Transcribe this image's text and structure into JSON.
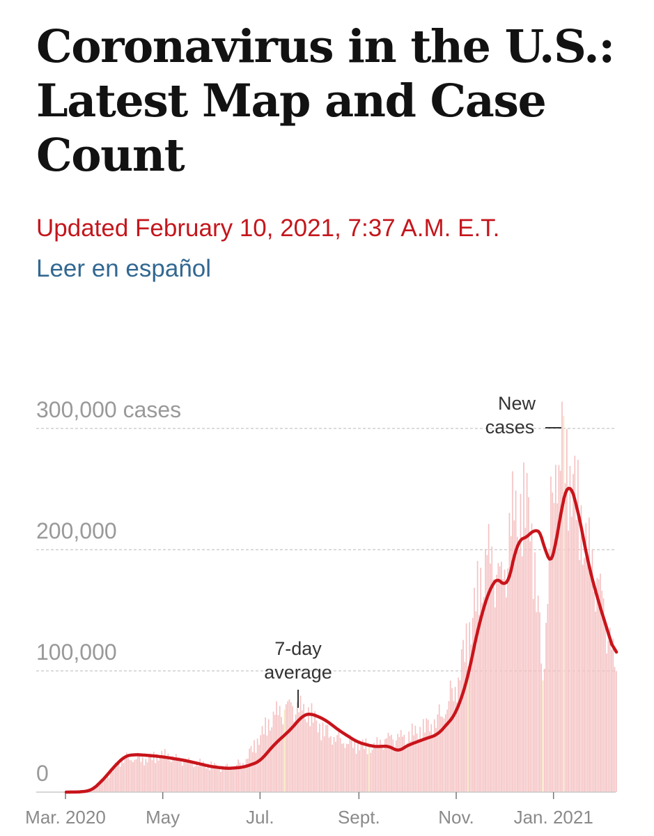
{
  "header": {
    "headline": "Coronavirus in the U.S.: Latest Map and Case Count",
    "updated": "Updated February 10, 2021, 7:37 A.M. E.T.",
    "spanish_link": "Leer en español"
  },
  "colors": {
    "headline": "#121212",
    "updated": "#c4161c",
    "link": "#326891",
    "avg_line": "#c8141b",
    "bar": "#f5c2c3",
    "bar_highlight": "#f3e3b8",
    "grid": "#cfcfcf"
  },
  "chart_data": {
    "type": "bar",
    "title": "",
    "xlabel": "",
    "ylabel": "",
    "y_unit_label": "cases",
    "ylim": [
      0,
      300000
    ],
    "y_ticks": [
      {
        "value": 0,
        "label": "0"
      },
      {
        "value": 100000,
        "label": "100,000"
      },
      {
        "value": 200000,
        "label": "200,000"
      },
      {
        "value": 300000,
        "label": "300,000 cases"
      }
    ],
    "x_ticks": [
      {
        "date": "2020-03-01",
        "label": "Mar. 2020"
      },
      {
        "date": "2020-05-01",
        "label": "May"
      },
      {
        "date": "2020-07-01",
        "label": "Jul."
      },
      {
        "date": "2020-09-01",
        "label": "Sept."
      },
      {
        "date": "2020-11-01",
        "label": "Nov."
      },
      {
        "date": "2021-01-01",
        "label": "Jan. 2021"
      }
    ],
    "x_range": [
      "2020-03-01",
      "2021-02-09"
    ],
    "grid": true,
    "series": [
      {
        "name": "New cases",
        "style": "bars",
        "points": [
          [
            "2020-03-01",
            0
          ],
          [
            "2020-03-10",
            200
          ],
          [
            "2020-03-20",
            4000
          ],
          [
            "2020-03-28",
            15000
          ],
          [
            "2020-04-03",
            26000
          ],
          [
            "2020-04-10",
            30000
          ],
          [
            "2020-04-20",
            28000
          ],
          [
            "2020-04-30",
            30000
          ],
          [
            "2020-05-10",
            26000
          ],
          [
            "2020-05-20",
            23000
          ],
          [
            "2020-05-30",
            22000
          ],
          [
            "2020-06-10",
            21000
          ],
          [
            "2020-06-20",
            25000
          ],
          [
            "2020-06-30",
            45000
          ],
          [
            "2020-07-10",
            61000
          ],
          [
            "2020-07-20",
            67000
          ],
          [
            "2020-07-31",
            64000
          ],
          [
            "2020-08-10",
            52000
          ],
          [
            "2020-08-20",
            46000
          ],
          [
            "2020-08-31",
            40000
          ],
          [
            "2020-09-10",
            36000
          ],
          [
            "2020-09-20",
            42000
          ],
          [
            "2020-09-30",
            43000
          ],
          [
            "2020-10-10",
            52000
          ],
          [
            "2020-10-20",
            62000
          ],
          [
            "2020-10-31",
            89000
          ],
          [
            "2020-11-10",
            140000
          ],
          [
            "2020-11-20",
            185000
          ],
          [
            "2020-11-25",
            175000
          ],
          [
            "2020-11-30",
            160000
          ],
          [
            "2020-12-05",
            215000
          ],
          [
            "2020-12-10",
            225000
          ],
          [
            "2020-12-17",
            238000
          ],
          [
            "2020-12-25",
            100000
          ],
          [
            "2020-12-30",
            230000
          ],
          [
            "2021-01-02",
            295000
          ],
          [
            "2021-01-08",
            290000
          ],
          [
            "2021-01-15",
            240000
          ],
          [
            "2021-01-22",
            190000
          ],
          [
            "2021-01-29",
            160000
          ],
          [
            "2021-02-05",
            120000
          ],
          [
            "2021-02-09",
            90000
          ]
        ]
      },
      {
        "name": "7-day average",
        "style": "line",
        "points": [
          [
            "2020-03-01",
            0
          ],
          [
            "2020-03-10",
            100
          ],
          [
            "2020-03-17",
            1500
          ],
          [
            "2020-03-24",
            10000
          ],
          [
            "2020-03-31",
            21000
          ],
          [
            "2020-04-07",
            30000
          ],
          [
            "2020-04-14",
            31000
          ],
          [
            "2020-04-24",
            30000
          ],
          [
            "2020-05-01",
            29000
          ],
          [
            "2020-05-15",
            26000
          ],
          [
            "2020-05-31",
            21000
          ],
          [
            "2020-06-10",
            19500
          ],
          [
            "2020-06-20",
            20500
          ],
          [
            "2020-06-30",
            25000
          ],
          [
            "2020-07-10",
            40000
          ],
          [
            "2020-07-20",
            52000
          ],
          [
            "2020-07-27",
            63000
          ],
          [
            "2020-08-01",
            65000
          ],
          [
            "2020-08-10",
            60000
          ],
          [
            "2020-08-20",
            50000
          ],
          [
            "2020-08-31",
            41000
          ],
          [
            "2020-09-10",
            37500
          ],
          [
            "2020-09-20",
            38000
          ],
          [
            "2020-09-25",
            33000
          ],
          [
            "2020-09-30",
            38000
          ],
          [
            "2020-10-10",
            43000
          ],
          [
            "2020-10-20",
            47500
          ],
          [
            "2020-10-31",
            64000
          ],
          [
            "2020-11-07",
            90000
          ],
          [
            "2020-11-15",
            140000
          ],
          [
            "2020-11-22",
            170000
          ],
          [
            "2020-11-28",
            178000
          ],
          [
            "2020-12-02",
            165000
          ],
          [
            "2020-12-09",
            208000
          ],
          [
            "2020-12-15",
            210000
          ],
          [
            "2020-12-20",
            218000
          ],
          [
            "2020-12-25",
            212000
          ],
          [
            "2020-12-28",
            186000
          ],
          [
            "2020-12-31",
            189000
          ],
          [
            "2021-01-06",
            238000
          ],
          [
            "2021-01-10",
            259000
          ],
          [
            "2021-01-16",
            232000
          ],
          [
            "2021-01-22",
            190000
          ],
          [
            "2021-01-28",
            160000
          ],
          [
            "2021-02-03",
            135000
          ],
          [
            "2021-02-09",
            109000
          ]
        ]
      }
    ],
    "annotations": [
      {
        "text": [
          "New",
          "cases"
        ],
        "target": "New cases"
      },
      {
        "text": [
          "7-day",
          "average"
        ],
        "target": "7-day average"
      }
    ]
  }
}
